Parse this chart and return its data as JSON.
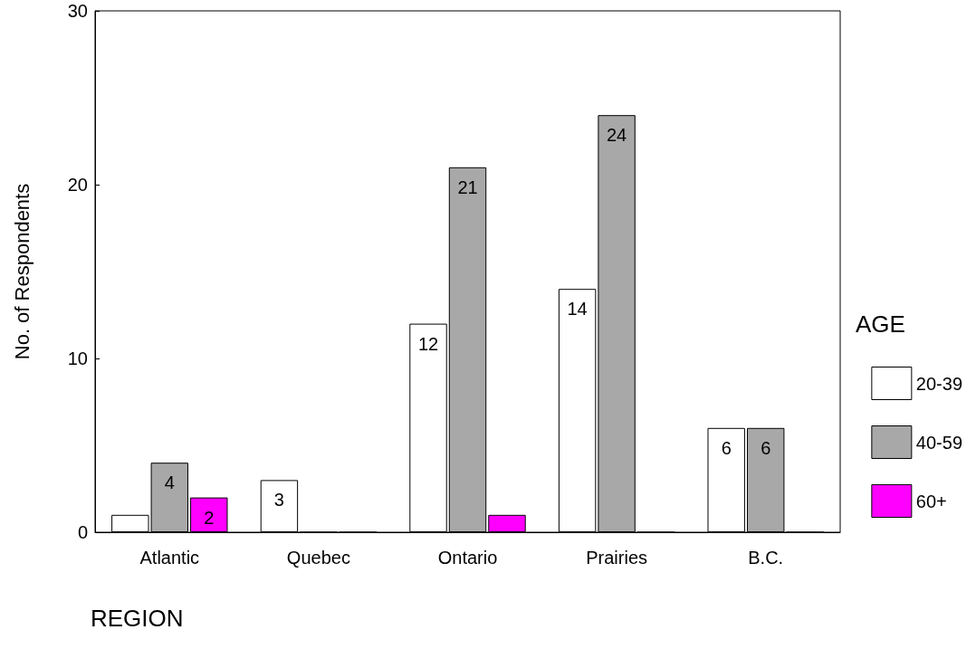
{
  "chart_data": {
    "type": "bar",
    "xlabel": "REGION",
    "ylabel": "No. of Respondents",
    "legend_title": "AGE",
    "categories": [
      "Atlantic",
      "Quebec",
      "Ontario",
      "Prairies",
      "B.C."
    ],
    "series": [
      {
        "name": "20-39",
        "color": "#ffffff",
        "values": [
          1,
          3,
          12,
          14,
          6
        ],
        "value_labels": [
          null,
          "3",
          "12",
          "14",
          "6"
        ]
      },
      {
        "name": "40-59",
        "color": "#a8a8a8",
        "values": [
          4,
          0,
          21,
          24,
          6
        ],
        "value_labels": [
          "4",
          null,
          "21",
          "24",
          "6"
        ]
      },
      {
        "name": "60+",
        "color": "#ff00ff",
        "values": [
          2,
          0,
          1,
          0,
          0
        ],
        "value_labels": [
          "2",
          null,
          null,
          null,
          null
        ]
      }
    ],
    "ylim": [
      0,
      30
    ],
    "yticks": [
      0,
      10,
      20,
      30
    ],
    "grid": false,
    "legend": "right"
  }
}
